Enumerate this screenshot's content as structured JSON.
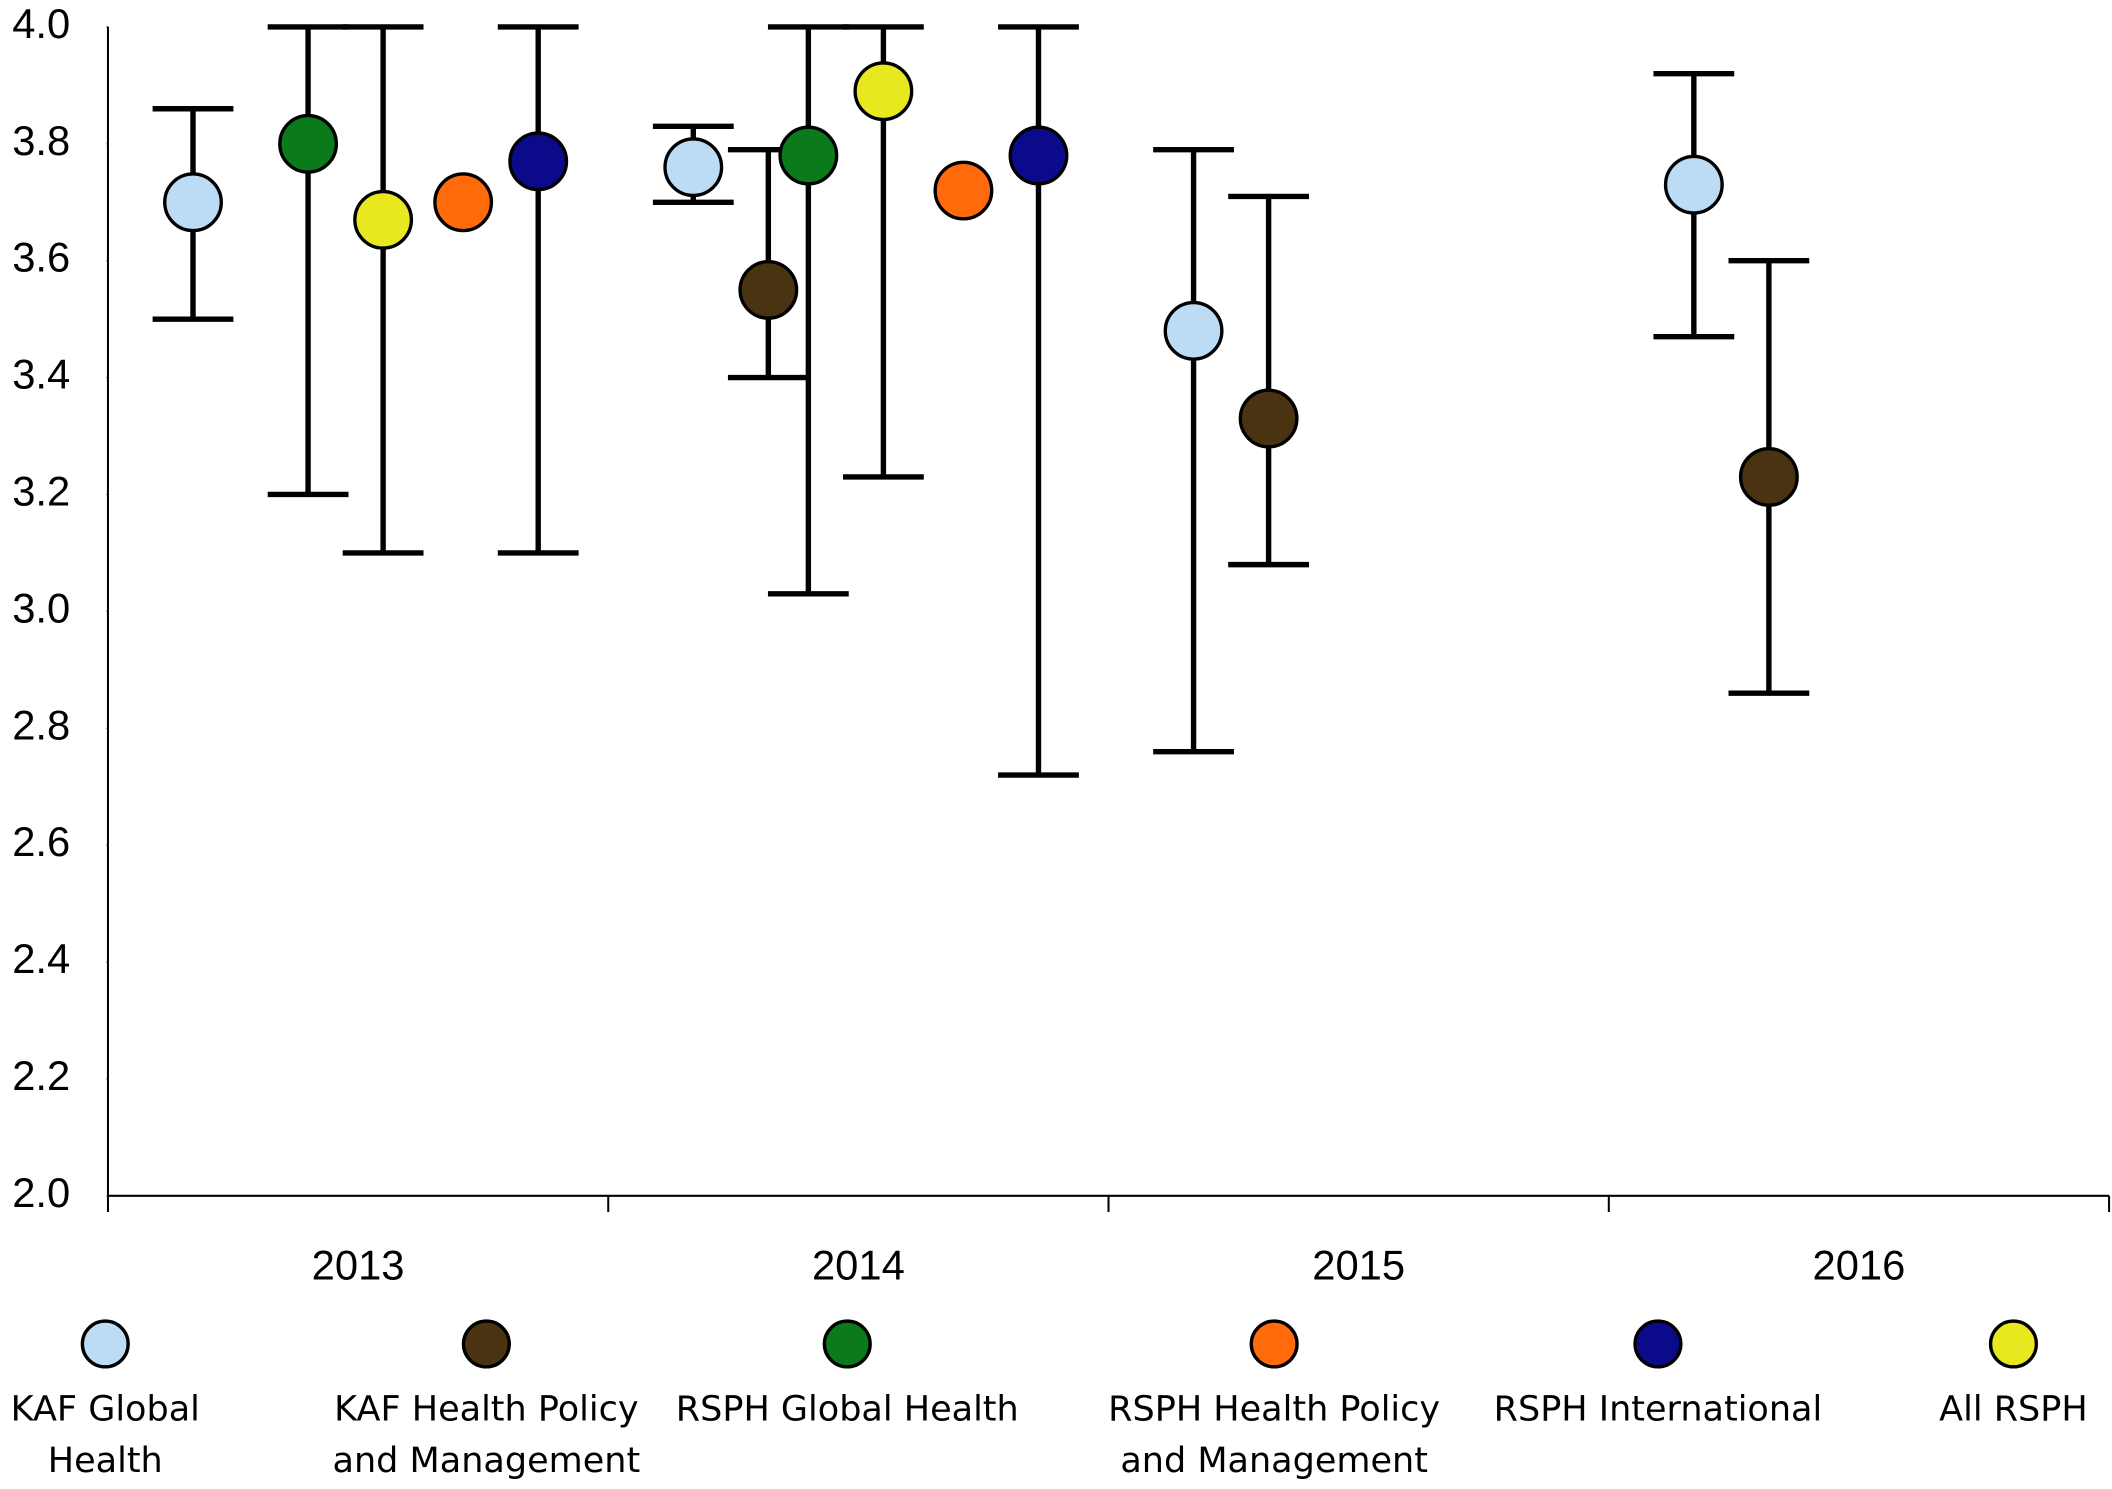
{
  "chart_data": {
    "type": "dot_errorbar",
    "categories": [
      "2013",
      "2014",
      "2015",
      "2016"
    ],
    "ylim": [
      2.0,
      4.0
    ],
    "yticks": [
      {
        "value": 2.0,
        "label": "2.0"
      },
      {
        "value": 2.2,
        "label": "2.2"
      },
      {
        "value": 2.4,
        "label": "2.4"
      },
      {
        "value": 2.6,
        "label": "2.6"
      },
      {
        "value": 2.8,
        "label": "2.8"
      },
      {
        "value": 3.0,
        "label": "3.0"
      },
      {
        "value": 3.2,
        "label": "3.2"
      },
      {
        "value": 3.4,
        "label": "3.4"
      },
      {
        "value": 3.6,
        "label": "3.6"
      },
      {
        "value": 3.8,
        "label": "3.8"
      },
      {
        "value": 4.0,
        "label": "4.0"
      }
    ],
    "grid": false,
    "series": [
      {
        "name": "KAF  Global Health",
        "color": "#bcdcf5",
        "values": [
          3.7,
          3.76,
          3.48,
          3.73
        ],
        "low": [
          3.5,
          3.7,
          2.76,
          3.47
        ],
        "high": [
          3.86,
          3.83,
          3.79,
          3.92
        ]
      },
      {
        "name": "KAF Health Policy and Management",
        "color": "#4a3310",
        "values": [
          null,
          3.55,
          3.33,
          3.23
        ],
        "low": [
          null,
          3.4,
          3.08,
          2.86
        ],
        "high": [
          null,
          3.79,
          3.71,
          3.6
        ]
      },
      {
        "name": "RSPH  Global Health",
        "color": "#0a7a1a",
        "values": [
          3.8,
          3.78,
          null,
          null
        ],
        "low": [
          3.2,
          3.03,
          null,
          null
        ],
        "high": [
          4.0,
          4.0,
          null,
          null
        ]
      },
      {
        "name": "RSPH Health Policy and Management",
        "color": "#ff6a0a",
        "values": [
          3.7,
          3.72,
          null,
          null
        ],
        "low": [
          null,
          null,
          null,
          null
        ],
        "high": [
          null,
          null,
          null,
          null
        ]
      },
      {
        "name": "RSPH International",
        "color": "#0a0a8a",
        "values": [
          3.77,
          3.78,
          null,
          null
        ],
        "low": [
          3.1,
          2.72,
          null,
          null
        ],
        "high": [
          4.0,
          4.0,
          null,
          null
        ]
      },
      {
        "name": "All RSPH",
        "color": "#e8e820",
        "values": [
          3.67,
          3.89,
          null,
          null
        ],
        "low": [
          3.1,
          3.23,
          null,
          null
        ],
        "high": [
          4.0,
          4.0,
          null,
          null
        ]
      }
    ]
  }
}
